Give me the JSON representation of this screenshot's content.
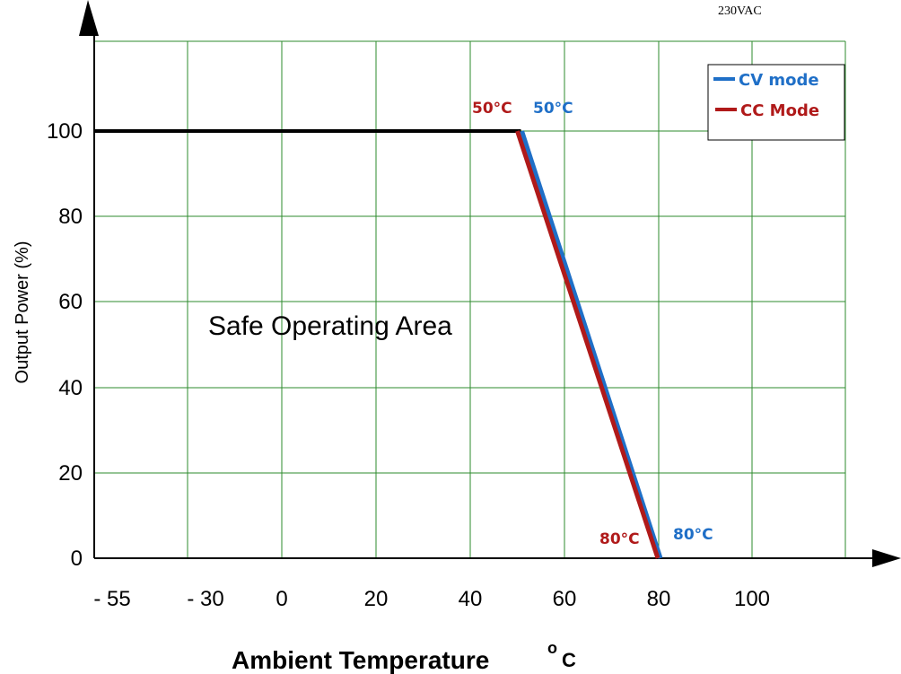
{
  "corner_text": "230VAC",
  "area_label": "Safe Operating Area",
  "colors": {
    "grid": "#2e8b2e",
    "cv": "#1f6fc7",
    "cc": "#b01a1a",
    "baseline": "#000000"
  },
  "chart_data": {
    "type": "line",
    "xlabel": "Ambient Temperature",
    "xlabel_unit": "o C",
    "ylabel": "Output Power (%)",
    "x_tick_labels": [
      "- 55",
      "- 30",
      "0",
      "20",
      "40",
      "60",
      "80",
      "100"
    ],
    "y_tick_labels": [
      "0",
      "20",
      "40",
      "60",
      "80",
      "100"
    ],
    "y_tick_values": [
      0,
      20,
      40,
      60,
      80,
      100
    ],
    "ylim": [
      0,
      120
    ],
    "grid": true,
    "legend_position": "top-right",
    "series": [
      {
        "name": "CV mode",
        "color": "#1f6fc7",
        "points": [
          [
            -55,
            100
          ],
          [
            50,
            100
          ],
          [
            80,
            0
          ]
        ]
      },
      {
        "name": "CC Mode",
        "color": "#b01a1a",
        "points": [
          [
            -55,
            100
          ],
          [
            50,
            100
          ],
          [
            80,
            0
          ]
        ]
      }
    ],
    "annotations": [
      {
        "text": "50°C",
        "color": "#b01a1a"
      },
      {
        "text": "50°C",
        "color": "#1f6fc7"
      },
      {
        "text": "80°C",
        "color": "#b01a1a"
      },
      {
        "text": "80°C",
        "color": "#1f6fc7"
      }
    ]
  }
}
